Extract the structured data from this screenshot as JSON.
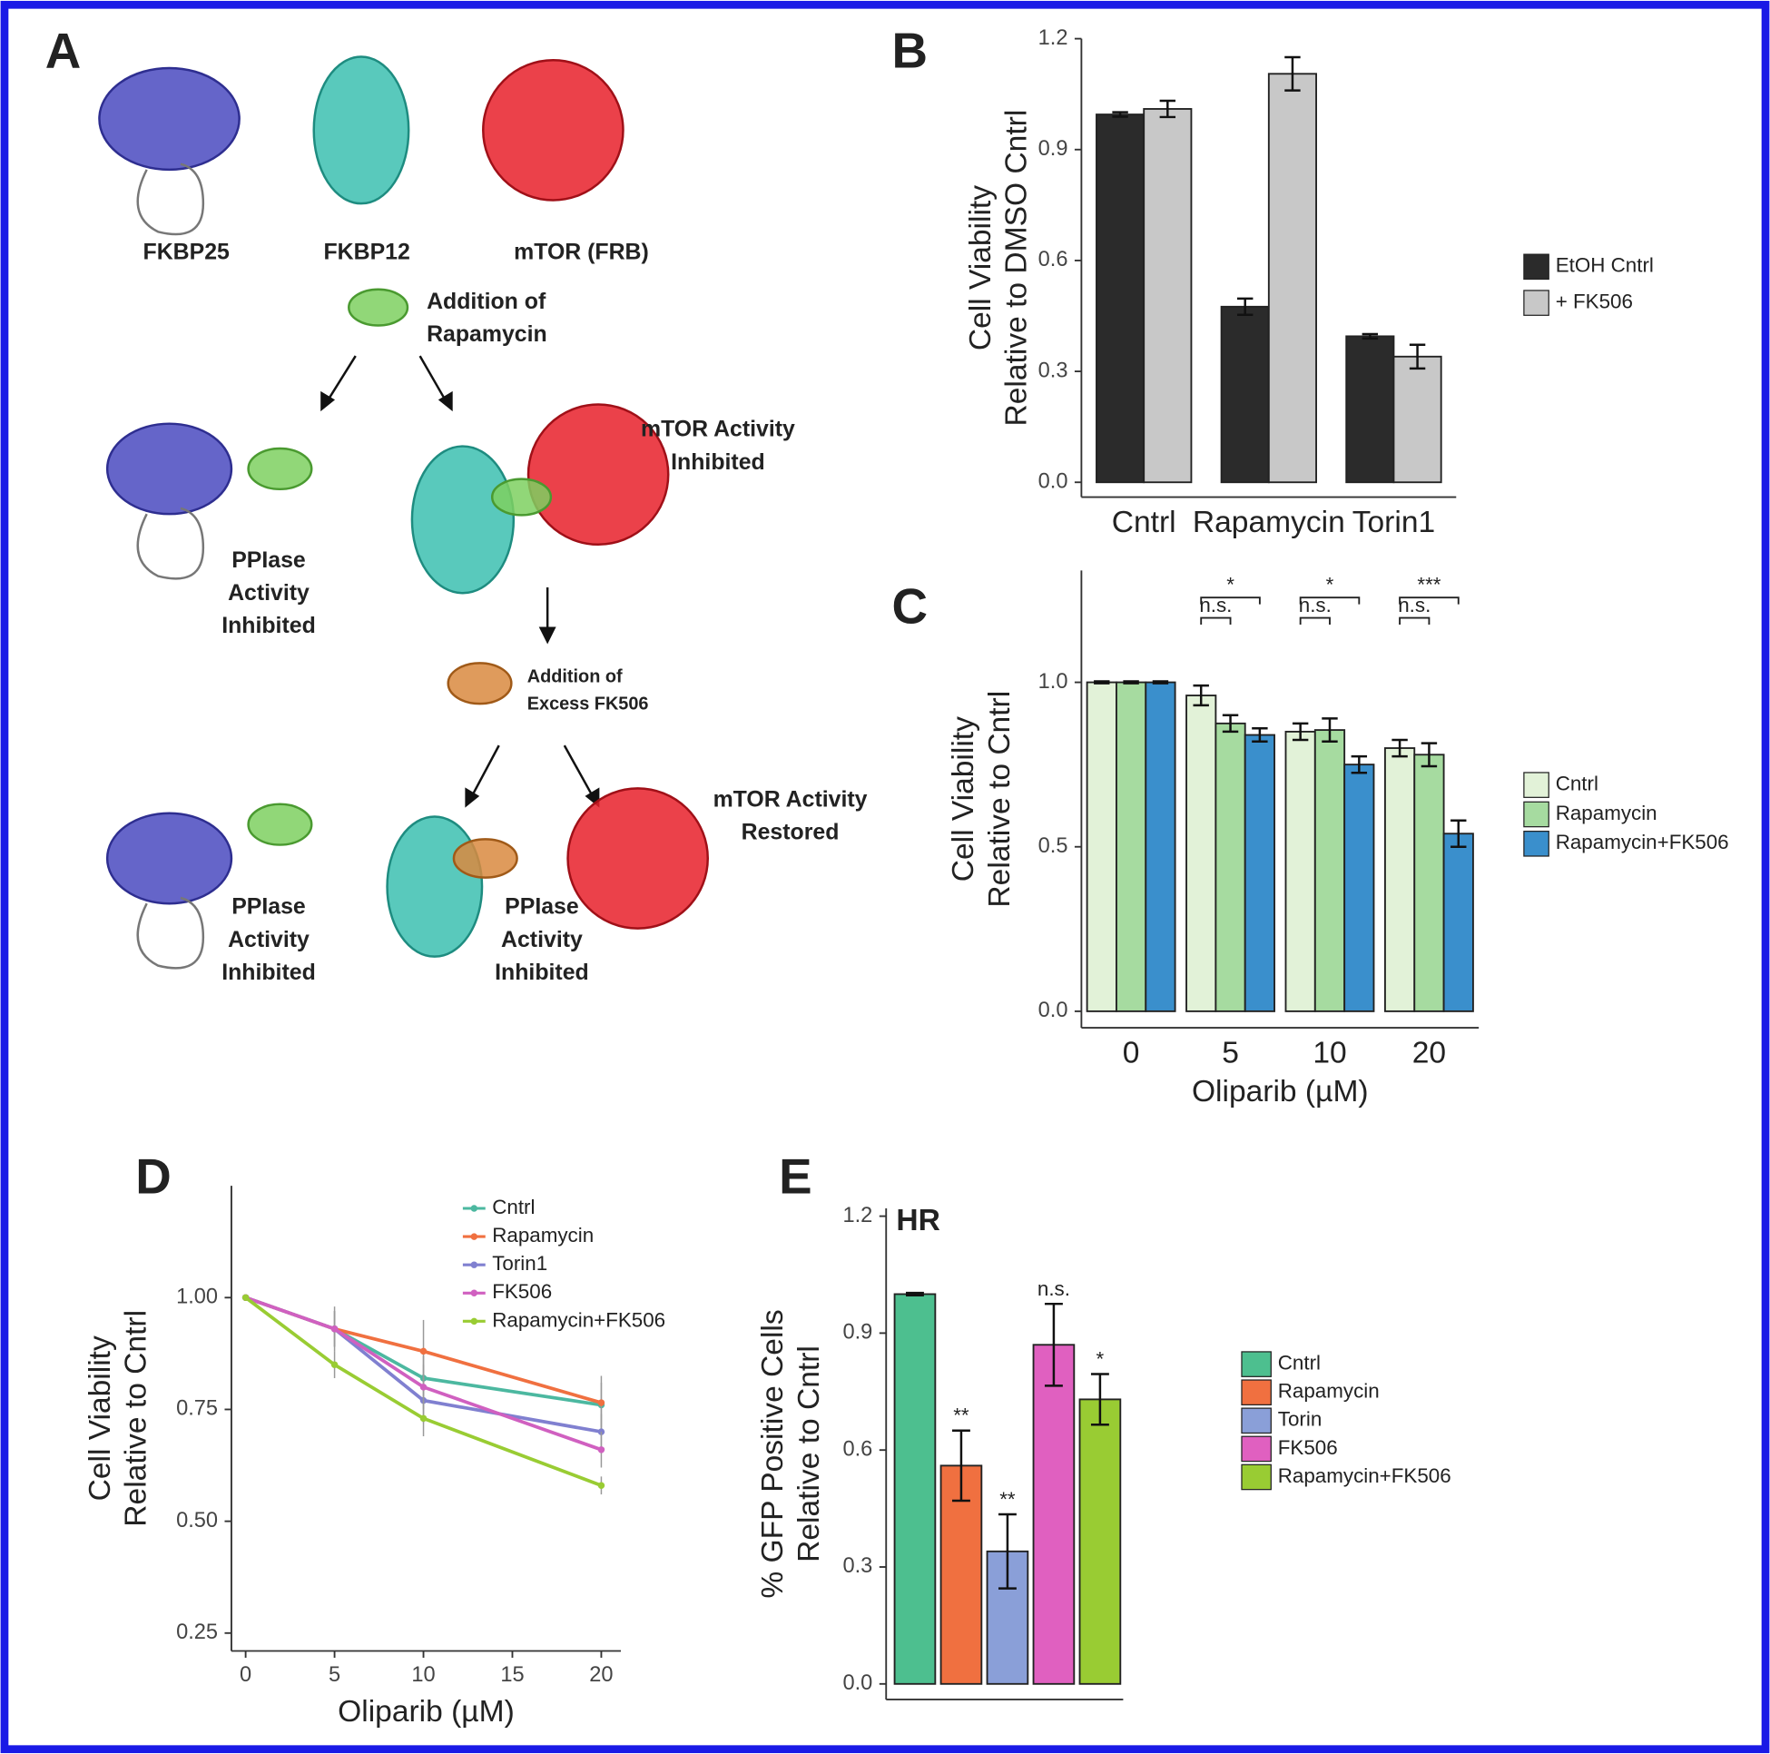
{
  "diagram": {
    "panel_label": "A",
    "proteins": [
      "FKBP25",
      "FKBP12",
      "mTOR (FRB)"
    ],
    "step1": [
      "Addition of",
      "Rapamycin"
    ],
    "mtor_inhibited": [
      "mTOR Activity",
      "Inhibited"
    ],
    "pplase_1": [
      "PPIase",
      "Activity",
      "Inhibited"
    ],
    "step2": [
      "Addition of",
      "Excess FK506"
    ],
    "mtor_restored": [
      "mTOR Activity",
      "Restored"
    ],
    "pplase_2": [
      "PPIase",
      "Activity",
      "Inhibited"
    ],
    "pplase_3": [
      "PPIase",
      "Activity",
      "Inhibited"
    ]
  },
  "chart_data": [
    {
      "type": "bar",
      "panel_label": "B",
      "categories": [
        "Cntrl",
        "Rapamycin",
        "Torin1"
      ],
      "series": [
        {
          "name": "EtOH Cntrl",
          "color": "#2b2b2b",
          "values": [
            0.995,
            0.475,
            0.395
          ],
          "errors": [
            0.006,
            0.022,
            0.006
          ]
        },
        {
          "name": "+ FK506",
          "color": "#c8c8c8",
          "values": [
            1.01,
            1.105,
            0.34
          ],
          "errors": [
            0.022,
            0.045,
            0.032
          ]
        }
      ],
      "ylabel": [
        "Cell Viability",
        "Relative to DMSO Cntrl"
      ],
      "ylim": [
        -0.04,
        1.2
      ],
      "yticks": [
        {
          "value": 0,
          "label": "0.0"
        },
        0.3,
        0.6,
        0.9,
        1.2
      ]
    },
    {
      "type": "bar",
      "panel_label": "C",
      "categories": [
        "0",
        "5",
        "10",
        "20"
      ],
      "series": [
        {
          "name": "Cntrl",
          "color": "#e2f2d8",
          "values": [
            1,
            0.96,
            0.85,
            0.8
          ],
          "errors": [
            0.003,
            0.03,
            0.025,
            0.025
          ]
        },
        {
          "name": "Rapamycin",
          "color": "#a6dba0",
          "values": [
            1,
            0.875,
            0.855,
            0.78
          ],
          "errors": [
            0.003,
            0.025,
            0.035,
            0.035
          ]
        },
        {
          "name": "Rapamycin+FK506",
          "color": "#3a8fcc",
          "values": [
            1,
            0.84,
            0.75,
            0.54
          ],
          "errors": [
            0.003,
            0.02,
            0.025,
            0.04
          ]
        }
      ],
      "significance": [
        [
          null,
          "n.s.",
          "n.s.",
          "n.s."
        ],
        [
          null,
          "*",
          "*",
          "***"
        ]
      ],
      "xlabel": "Oliparib (µM)",
      "ylabel": [
        "Cell Viability",
        "Relative to Cntrl"
      ],
      "ylim": [
        -0.05,
        1.34
      ],
      "yticks": [
        {
          "value": 0,
          "label": "0.0"
        },
        0.5,
        {
          "value": 1,
          "label": "1.0"
        }
      ]
    },
    {
      "type": "line",
      "panel_label": "D",
      "x": [
        0,
        5,
        10,
        20
      ],
      "series": [
        {
          "name": "Cntrl",
          "color": "#4cb8a0",
          "values": [
            1,
            0.93,
            0.82,
            0.76
          ],
          "errors": [
            0,
            0.04,
            0.05,
            0.05
          ]
        },
        {
          "name": "Rapamycin",
          "color": "#f07040",
          "values": [
            1,
            0.93,
            0.88,
            0.765
          ],
          "errors": [
            0,
            0.05,
            0.07,
            0.06
          ]
        },
        {
          "name": "Torin1",
          "color": "#8080d0",
          "values": [
            1,
            0.93,
            0.77,
            0.7
          ],
          "errors": [
            0,
            0.04,
            0.05,
            0.04
          ]
        },
        {
          "name": "FK506",
          "color": "#d060c0",
          "values": [
            1,
            0.93,
            0.8,
            0.66
          ],
          "errors": [
            0,
            0.04,
            0.05,
            0.04
          ]
        },
        {
          "name": "Rapamycin+FK506",
          "color": "#99cc33",
          "values": [
            1,
            0.85,
            0.73,
            0.58
          ],
          "errors": [
            0,
            0.03,
            0.04,
            0.02
          ]
        }
      ],
      "xlabel": "Oliparib (µM)",
      "ylabel": [
        "Cell Viability",
        "Relative to Cntrl"
      ],
      "xlim": [
        -0.8,
        21.1
      ],
      "xticks": [
        0,
        5,
        10,
        15,
        20
      ],
      "ylim": [
        0.21,
        1.25
      ],
      "yticks": [
        {
          "value": 1,
          "label": "1.00"
        },
        0.75,
        {
          "value": 0.5,
          "label": "0.50"
        },
        0.25
      ]
    },
    {
      "type": "bar",
      "panel_label": "E",
      "subtitle": "HR",
      "categories": [
        "Cntrl",
        "Rapamycin",
        "Torin",
        "FK506",
        "Rapamycin+FK506"
      ],
      "colors": [
        "#4dbf8f",
        "#f07040",
        "#8a9fd8",
        "#e060c0",
        "#99cc33"
      ],
      "values": [
        1,
        0.56,
        0.34,
        0.87,
        0.73
      ],
      "errors": [
        0.003,
        0.09,
        0.095,
        0.105,
        0.065
      ],
      "value_annotations": [
        null,
        "**",
        "**",
        "n.s.",
        "*"
      ],
      "ylabel": [
        "% GFP Positive Cells",
        "Relative to Cntrl"
      ],
      "ylim": [
        -0.04,
        1.22
      ],
      "yticks": [
        {
          "value": 0,
          "label": "0.0"
        },
        0.3,
        0.6,
        0.9,
        1.2
      ]
    }
  ]
}
